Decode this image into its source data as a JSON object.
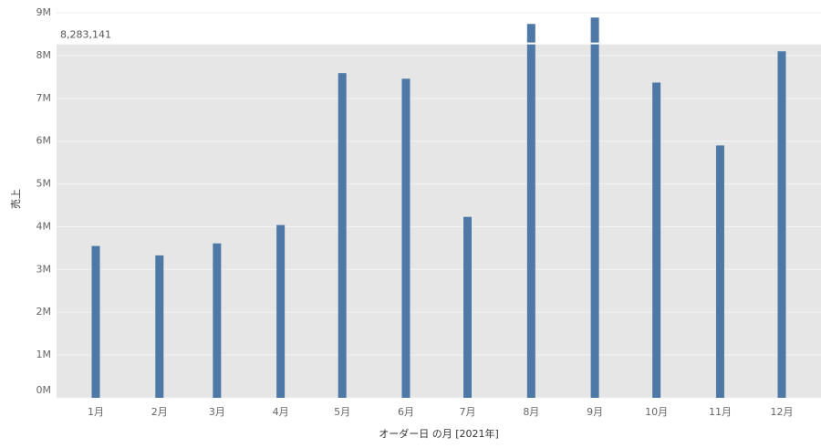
{
  "chart_data": {
    "type": "bar",
    "x_label": "オーダー日 の月 [2021年]",
    "y_label": "売上",
    "categories": [
      "1月",
      "2月",
      "3月",
      "4月",
      "5月",
      "6月",
      "7月",
      "8月",
      "9月",
      "10月",
      "11月",
      "12月"
    ],
    "values": [
      3550000,
      3330000,
      3610000,
      4040000,
      7590000,
      7460000,
      4230000,
      8740000,
      8890000,
      7370000,
      5900000,
      8100000
    ],
    "color": "#4e79a7",
    "ylim": [
      0,
      9300000
    ],
    "yticks": [
      {
        "value": 0,
        "label": "0M"
      },
      {
        "value": 1000000,
        "label": "1M"
      },
      {
        "value": 2000000,
        "label": "2M"
      },
      {
        "value": 3000000,
        "label": "3M"
      },
      {
        "value": 4000000,
        "label": "4M"
      },
      {
        "value": 5000000,
        "label": "5M"
      },
      {
        "value": 6000000,
        "label": "6M"
      },
      {
        "value": 7000000,
        "label": "7M"
      },
      {
        "value": 8000000,
        "label": "8M"
      },
      {
        "value": 9000000,
        "label": "9M"
      }
    ],
    "grid": true,
    "reference_line": {
      "value": 8283141,
      "label": "8,283,141"
    }
  }
}
